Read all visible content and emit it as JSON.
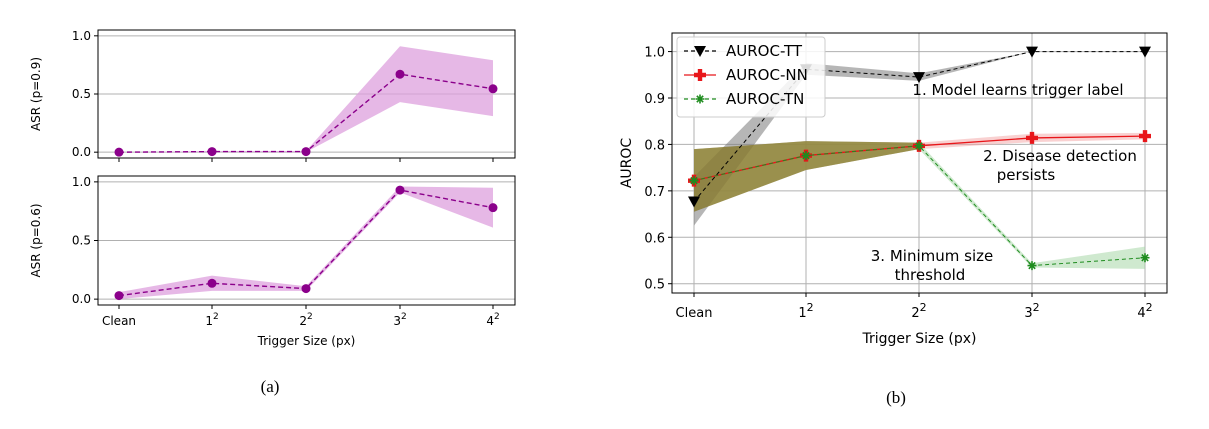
{
  "captions": {
    "a": "(a)",
    "b": "(b)"
  },
  "colors": {
    "asr": "#8b008b",
    "asr_band": "#dda0dd",
    "tt": "#000000",
    "tt_band": "#808080",
    "nn": "#e8161a",
    "nn_band": "#f4a3a3",
    "tn": "#1e8c1e",
    "tn_band": "#9fd49f",
    "grid": "#b0b0b0"
  },
  "chart_data": [
    {
      "id": "a_top",
      "type": "line",
      "categories": [
        "Clean",
        "1^2",
        "2^2",
        "3^2",
        "4^2"
      ],
      "ylabel": "ASR (p=0.9)",
      "xlabel": "",
      "ylim": [
        -0.05,
        1.05
      ],
      "yticks": [
        "0.0",
        "0.5",
        "1.0"
      ],
      "grid": "y",
      "series": [
        {
          "values": [
            0.0,
            0.005,
            0.005,
            0.67,
            0.545
          ],
          "lower": [
            0.0,
            0.0,
            0.0,
            0.43,
            0.31
          ],
          "upper": [
            0.0,
            0.01,
            0.01,
            0.91,
            0.79
          ]
        }
      ]
    },
    {
      "id": "a_bottom",
      "type": "line",
      "categories": [
        "Clean",
        "1^2",
        "2^2",
        "3^2",
        "4^2"
      ],
      "ylabel": "ASR (p=0.6)",
      "xlabel": "Trigger Size (px)",
      "ylim": [
        -0.05,
        1.05
      ],
      "yticks": [
        "0.0",
        "0.5",
        "1.0"
      ],
      "grid": "y",
      "series": [
        {
          "values": [
            0.03,
            0.135,
            0.09,
            0.93,
            0.78
          ],
          "lower": [
            0.0,
            0.07,
            0.07,
            0.91,
            0.61
          ],
          "upper": [
            0.06,
            0.2,
            0.11,
            0.96,
            0.95
          ]
        }
      ]
    },
    {
      "id": "b",
      "type": "line",
      "categories": [
        "Clean",
        "1^2",
        "2^2",
        "3^2",
        "4^2"
      ],
      "ylabel": "AUROC",
      "xlabel": "Trigger Size (px)",
      "ylim": [
        0.48,
        1.04
      ],
      "yticks": [
        "0.5",
        "0.6",
        "0.7",
        "0.8",
        "0.9",
        "1.0"
      ],
      "grid": "both",
      "legend": "top-left",
      "series": [
        {
          "name": "AUROC-TT",
          "marker": "triangle-down",
          "linestyle": "dashed",
          "values": [
            0.677,
            0.962,
            0.945,
            1.0,
            1.0
          ],
          "lower": [
            0.625,
            0.95,
            0.937,
            1.0,
            1.0
          ],
          "upper": [
            0.73,
            0.975,
            0.953,
            1.0,
            1.0
          ]
        },
        {
          "name": "AUROC-NN",
          "marker": "plus",
          "linestyle": "solid",
          "values": [
            0.722,
            0.776,
            0.797,
            0.814,
            0.818
          ],
          "lower": [
            0.655,
            0.745,
            0.79,
            0.805,
            0.811
          ],
          "upper": [
            0.79,
            0.807,
            0.804,
            0.823,
            0.825
          ]
        },
        {
          "name": "AUROC-TN",
          "marker": "star",
          "linestyle": "dashed",
          "values": [
            0.722,
            0.776,
            0.797,
            0.539,
            0.556
          ],
          "lower": [
            0.655,
            0.745,
            0.79,
            0.535,
            0.532
          ],
          "upper": [
            0.79,
            0.807,
            0.804,
            0.544,
            0.58
          ]
        }
      ],
      "annotations": [
        {
          "lines": [
            "1. Model learns trigger label"
          ],
          "anchor": [
            2.5,
            0.935
          ]
        },
        {
          "lines": [
            "2. Disease detection",
            "persists"
          ],
          "anchor": [
            3.25,
            0.77
          ]
        },
        {
          "lines": [
            "3. Minimum size",
            "threshold"
          ],
          "anchor": [
            2.35,
            0.583
          ]
        }
      ]
    }
  ]
}
